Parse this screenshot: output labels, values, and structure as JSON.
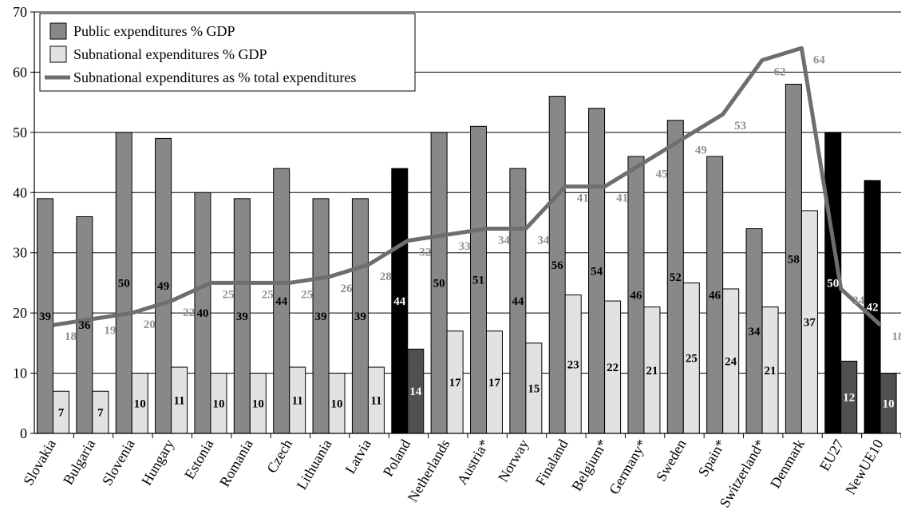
{
  "chart_data": {
    "type": "bar",
    "categories": [
      "Slovakia",
      "Bulgaria",
      "Slovenia",
      "Hungary",
      "Estonia",
      "Romania",
      "Czech",
      "Lithuania",
      "Latvia",
      "Poland",
      "Netherlands",
      "Austria*",
      "Norway",
      "Finaland",
      "Belgium*",
      "Germany*",
      "Sweden",
      "Spain*",
      "Switzerland*",
      "Denmark",
      "EU27",
      "NewUE10"
    ],
    "series": [
      {
        "name": "Public expenditures % GDP",
        "kind": "bar",
        "values": [
          39,
          36,
          50,
          49,
          40,
          39,
          44,
          39,
          39,
          44,
          50,
          51,
          44,
          56,
          54,
          46,
          52,
          46,
          34,
          58,
          50,
          42
        ]
      },
      {
        "name": "Subnational expenditures % GDP",
        "kind": "bar",
        "values": [
          7,
          7,
          10,
          11,
          10,
          10,
          11,
          10,
          11,
          14,
          17,
          17,
          15,
          23,
          22,
          21,
          25,
          24,
          21,
          37,
          12,
          10
        ]
      },
      {
        "name": "Subnational expenditures as % total expenditures",
        "kind": "line",
        "values": [
          18,
          19,
          20,
          22,
          25,
          25,
          25,
          26,
          28,
          32,
          33,
          34,
          34,
          41,
          41,
          45,
          49,
          53,
          62,
          64,
          24,
          18
        ]
      }
    ],
    "ylim": [
      0,
      70
    ],
    "yticks": [
      0,
      10,
      20,
      30,
      40,
      50,
      60,
      70
    ],
    "grid": true,
    "legend_position": "top-left",
    "colors": {
      "public": "#888888",
      "subnational": "#e2e2e2",
      "line": "#6e6e6e",
      "highlight_public": "#000000",
      "highlight_subnational": "#505050",
      "line_label": "#909090"
    },
    "highlighted_categories": [
      "Poland",
      "EU27",
      "NewUE10"
    ]
  }
}
